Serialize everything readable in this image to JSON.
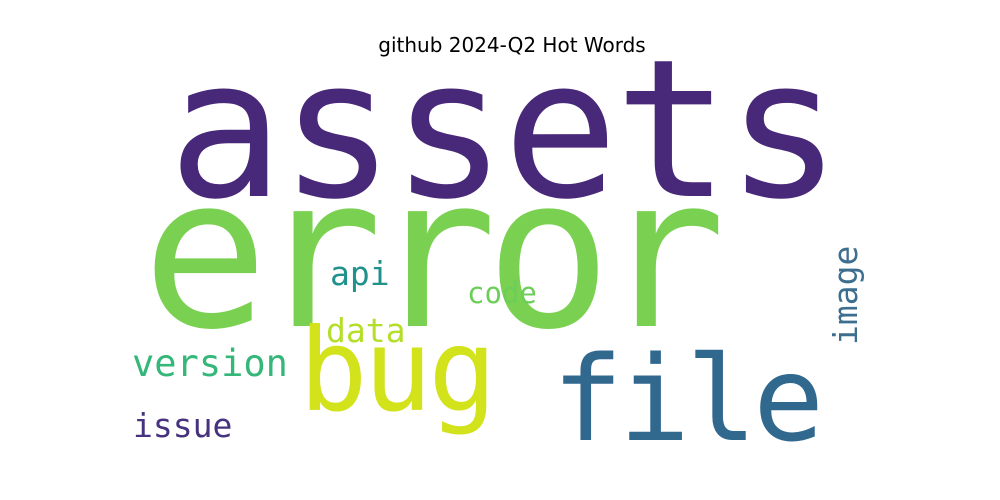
{
  "chart_data": {
    "type": "wordcloud",
    "title": "github 2024-Q2 Hot Words",
    "words": [
      {
        "text": "assets",
        "color": "#482878",
        "orientation": "horizontal"
      },
      {
        "text": "error",
        "color": "#7AD151",
        "orientation": "horizontal"
      },
      {
        "text": "file",
        "color": "#31688E",
        "orientation": "horizontal"
      },
      {
        "text": "bug",
        "color": "#D2E21B",
        "orientation": "horizontal"
      },
      {
        "text": "version",
        "color": "#35B779",
        "orientation": "horizontal"
      },
      {
        "text": "image",
        "color": "#3E6E8E",
        "orientation": "vertical"
      },
      {
        "text": "api",
        "color": "#21918C",
        "orientation": "horizontal"
      },
      {
        "text": "code",
        "color": "#6CCE59",
        "orientation": "horizontal"
      },
      {
        "text": "data",
        "color": "#B5DE2B",
        "orientation": "horizontal"
      },
      {
        "text": "issue",
        "color": "#46327E",
        "orientation": "horizontal"
      }
    ]
  }
}
